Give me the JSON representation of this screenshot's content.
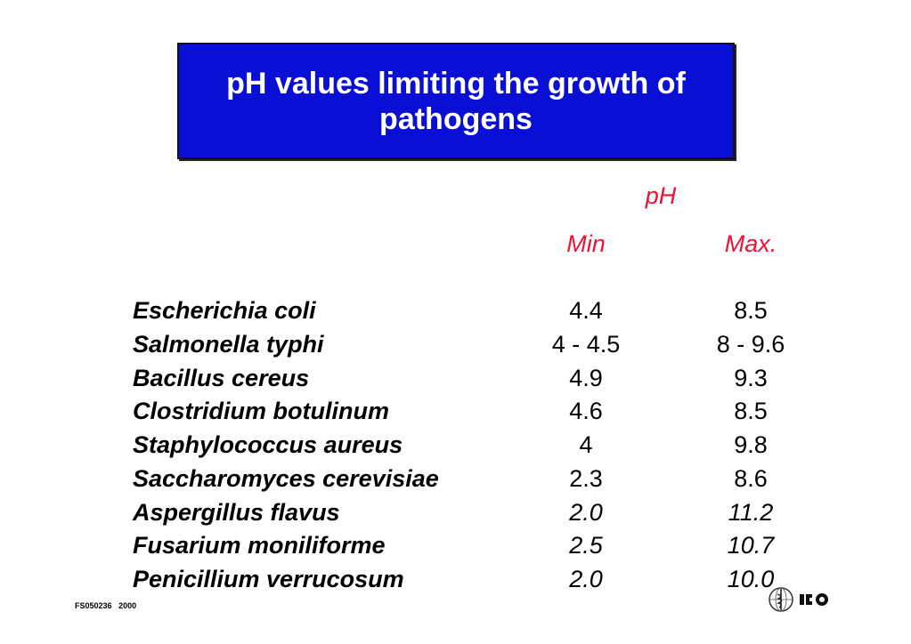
{
  "title": "pH values limiting the growth of pathogens",
  "headers": {
    "group": "pH",
    "min": "Min",
    "max": "Max."
  },
  "rows": [
    {
      "organism": "Escherichia coli",
      "min": "4.4",
      "max": "8.5",
      "italic_values": false
    },
    {
      "organism": "Salmonella typhi",
      "min": "4 - 4.5",
      "max": "8 - 9.6",
      "italic_values": false
    },
    {
      "organism": "Bacillus cereus",
      "min": "4.9",
      "max": "9.3",
      "italic_values": false
    },
    {
      "organism": "Clostridium botulinum",
      "min": "4.6",
      "max": "8.5",
      "italic_values": false
    },
    {
      "organism": "Staphylococcus aureus",
      "min": "4",
      "max": "9.8",
      "italic_values": false
    },
    {
      "organism": "Saccharomyces cerevisiae",
      "min": "2.3",
      "max": "8.6",
      "italic_values": false
    },
    {
      "organism": "Aspergillus flavus",
      "min": "2.0",
      "max": "11.2",
      "italic_values": true
    },
    {
      "organism": "Fusarium moniliforme",
      "min": "2.5",
      "max": "10.7",
      "italic_values": true
    },
    {
      "organism": "Penicillium verrucosum",
      "min": "2.0",
      "max": "10.0",
      "italic_values": true
    }
  ],
  "footer": {
    "code": "FS050236",
    "year": "2000"
  },
  "logos": {
    "who_emblem": "who-emblem-icon",
    "food_safety_mark": "fos-logo-icon"
  },
  "colors": {
    "title_background": "#0a0fd6",
    "title_text": "#ffffff",
    "header_text": "#ee1133",
    "body_text": "#000000"
  }
}
